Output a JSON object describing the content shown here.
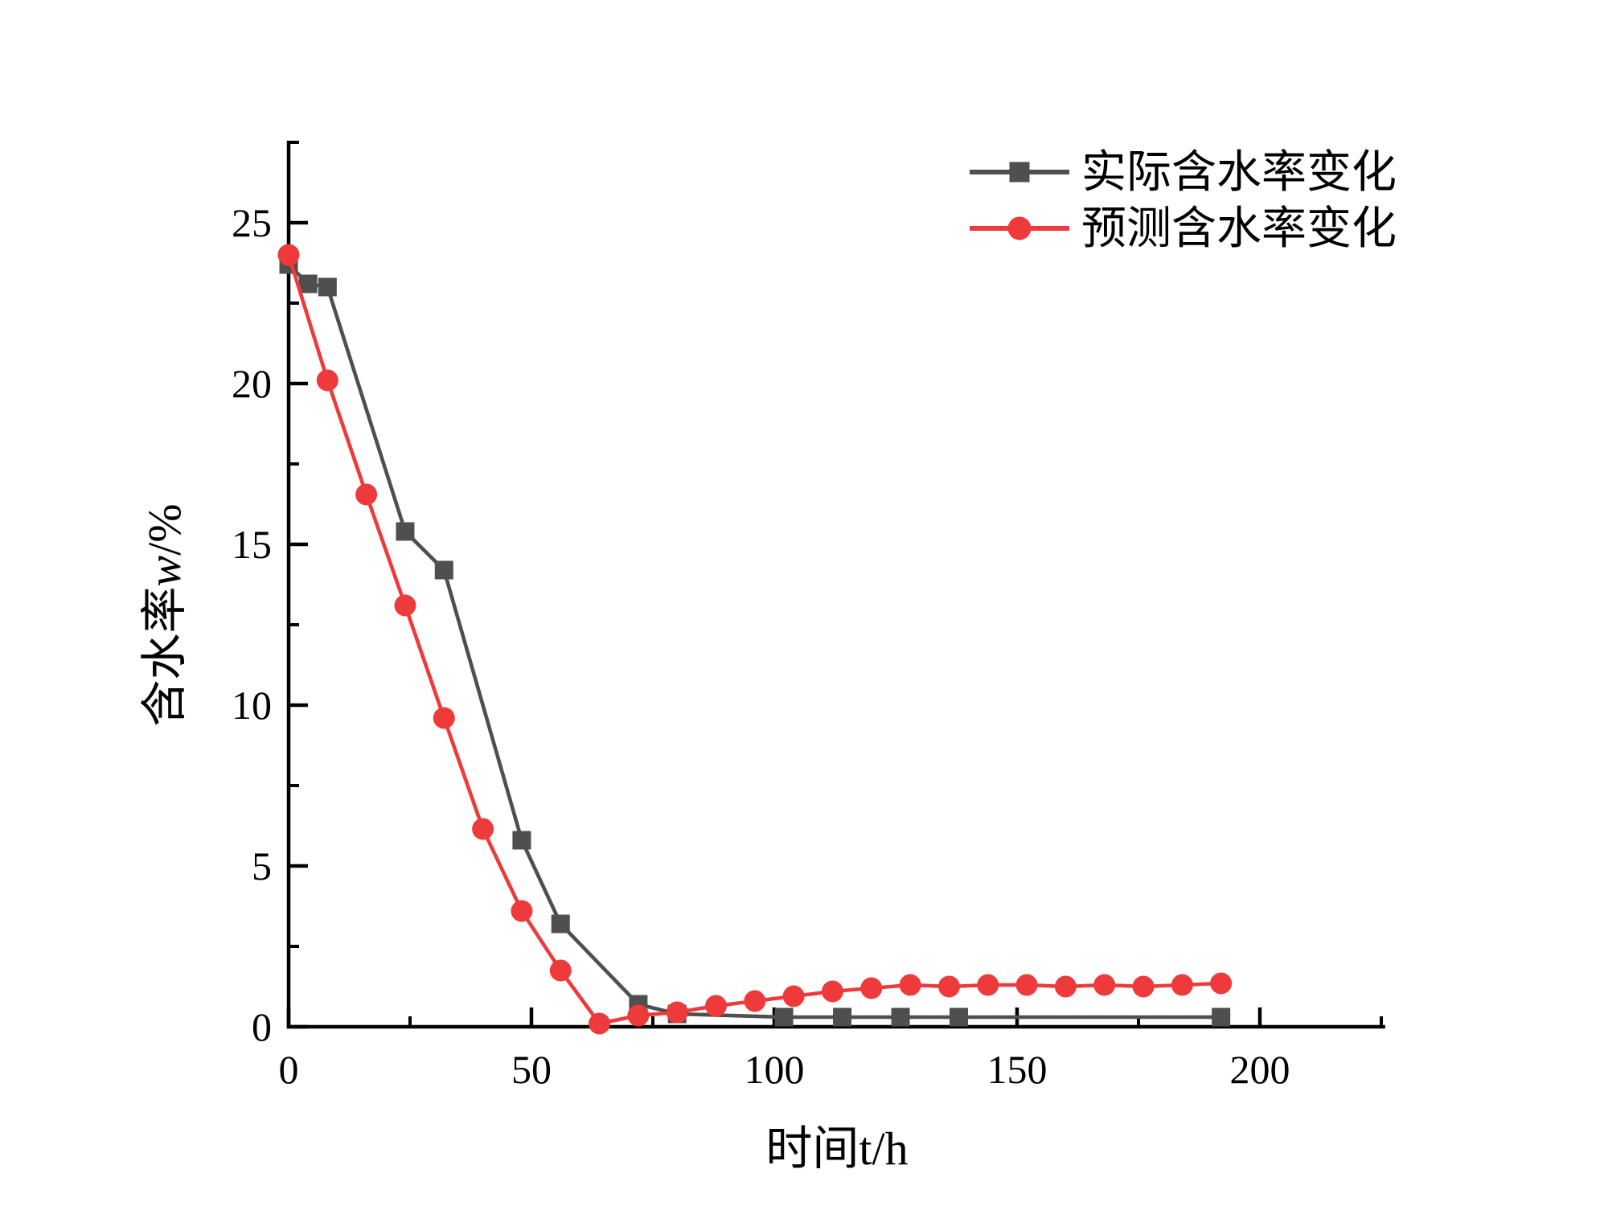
{
  "chart_data": {
    "type": "line",
    "title": "",
    "xlabel": "时间t/h",
    "ylabel": {
      "cn": "含水率",
      "var": "w",
      "unit": "/%"
    },
    "x_axis": {
      "min": 0,
      "max": 225.8,
      "major_ticks": [
        0,
        50,
        100,
        150,
        200
      ],
      "minor_ticks": [
        25,
        75,
        125,
        175,
        225
      ]
    },
    "y_axis": {
      "min": 0,
      "max": 27.55,
      "major_ticks": [
        0,
        5,
        10,
        15,
        20,
        25
      ],
      "minor_ticks": [
        2.5,
        7.5,
        12.5,
        17.5,
        22.5,
        27.5
      ]
    },
    "grid": false,
    "legend_position": "top-right",
    "axis_color": "#000000",
    "series": [
      {
        "name": "实际含水率变化",
        "color": "#4f4f4f",
        "marker": "square",
        "points": [
          [
            0,
            23.7
          ],
          [
            4,
            23.1
          ],
          [
            8,
            23.0
          ],
          [
            24,
            15.4
          ],
          [
            32,
            14.2
          ],
          [
            48,
            5.8
          ],
          [
            56,
            3.2
          ],
          [
            72,
            0.7
          ],
          [
            80,
            0.4
          ],
          [
            102,
            0.3
          ],
          [
            114,
            0.3
          ],
          [
            126,
            0.3
          ],
          [
            138,
            0.3
          ],
          [
            192,
            0.3
          ]
        ]
      },
      {
        "name": "预测含水率变化",
        "color": "#ee3a3a",
        "marker": "circle",
        "points": [
          [
            0,
            24.0
          ],
          [
            8,
            20.1
          ],
          [
            16,
            16.55
          ],
          [
            24,
            13.1
          ],
          [
            32,
            9.6
          ],
          [
            40,
            6.15
          ],
          [
            48,
            3.6
          ],
          [
            56,
            1.75
          ],
          [
            64,
            0.1
          ],
          [
            72,
            0.35
          ],
          [
            80,
            0.45
          ],
          [
            88,
            0.65
          ],
          [
            96,
            0.8
          ],
          [
            104,
            0.95
          ],
          [
            112,
            1.1
          ],
          [
            120,
            1.2
          ],
          [
            128,
            1.3
          ],
          [
            136,
            1.25
          ],
          [
            144,
            1.3
          ],
          [
            152,
            1.3
          ],
          [
            160,
            1.25
          ],
          [
            168,
            1.3
          ],
          [
            176,
            1.25
          ],
          [
            184,
            1.3
          ],
          [
            192,
            1.35
          ]
        ]
      }
    ]
  }
}
